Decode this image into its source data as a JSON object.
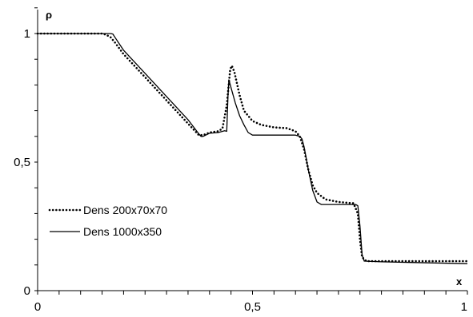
{
  "chart_data": {
    "type": "line",
    "xlabel": "x",
    "ylabel": "ρ",
    "xlim": [
      0,
      1
    ],
    "ylim": [
      0,
      1.1
    ],
    "x_ticks": [
      {
        "value": 0,
        "label": "0"
      },
      {
        "value": 0.5,
        "label": "0,5"
      },
      {
        "value": 1,
        "label": "1"
      }
    ],
    "y_ticks": [
      {
        "value": 0,
        "label": "0"
      },
      {
        "value": 0.5,
        "label": "0,5"
      },
      {
        "value": 1,
        "label": "1"
      }
    ],
    "x_minor_step": 0.05,
    "y_minor_step": 0.1,
    "grid": false,
    "legend_position": "left, lower middle",
    "series": [
      {
        "name": "Dens 200x70x70",
        "style": "dotted",
        "color": "#000000",
        "points": [
          [
            0,
            1.0
          ],
          [
            0.15,
            1.0
          ],
          [
            0.16,
            0.995
          ],
          [
            0.17,
            0.985
          ],
          [
            0.18,
            0.965
          ],
          [
            0.2,
            0.92
          ],
          [
            0.25,
            0.83
          ],
          [
            0.3,
            0.74
          ],
          [
            0.35,
            0.65
          ],
          [
            0.375,
            0.605
          ],
          [
            0.385,
            0.605
          ],
          [
            0.4,
            0.615
          ],
          [
            0.42,
            0.62
          ],
          [
            0.43,
            0.63
          ],
          [
            0.44,
            0.72
          ],
          [
            0.448,
            0.86
          ],
          [
            0.452,
            0.875
          ],
          [
            0.458,
            0.85
          ],
          [
            0.47,
            0.76
          ],
          [
            0.48,
            0.7
          ],
          [
            0.5,
            0.66
          ],
          [
            0.52,
            0.645
          ],
          [
            0.55,
            0.635
          ],
          [
            0.58,
            0.632
          ],
          [
            0.6,
            0.62
          ],
          [
            0.61,
            0.6
          ],
          [
            0.62,
            0.55
          ],
          [
            0.63,
            0.47
          ],
          [
            0.64,
            0.41
          ],
          [
            0.65,
            0.38
          ],
          [
            0.67,
            0.355
          ],
          [
            0.7,
            0.345
          ],
          [
            0.72,
            0.342
          ],
          [
            0.735,
            0.34
          ],
          [
            0.745,
            0.3
          ],
          [
            0.75,
            0.2
          ],
          [
            0.755,
            0.13
          ],
          [
            0.765,
            0.115
          ],
          [
            0.8,
            0.115
          ],
          [
            1.0,
            0.115
          ]
        ]
      },
      {
        "name": "Dens 1000x350",
        "style": "solid",
        "color": "#000000",
        "points": [
          [
            0,
            1.0
          ],
          [
            0.17,
            1.0
          ],
          [
            0.175,
            0.998
          ],
          [
            0.18,
            0.985
          ],
          [
            0.19,
            0.96
          ],
          [
            0.2,
            0.935
          ],
          [
            0.25,
            0.845
          ],
          [
            0.3,
            0.755
          ],
          [
            0.35,
            0.665
          ],
          [
            0.375,
            0.61
          ],
          [
            0.38,
            0.6
          ],
          [
            0.385,
            0.6
          ],
          [
            0.4,
            0.612
          ],
          [
            0.42,
            0.615
          ],
          [
            0.435,
            0.622
          ],
          [
            0.44,
            0.62
          ],
          [
            0.443,
            0.76
          ],
          [
            0.445,
            0.82
          ],
          [
            0.45,
            0.79
          ],
          [
            0.46,
            0.73
          ],
          [
            0.47,
            0.68
          ],
          [
            0.48,
            0.645
          ],
          [
            0.49,
            0.615
          ],
          [
            0.5,
            0.605
          ],
          [
            0.55,
            0.605
          ],
          [
            0.6,
            0.605
          ],
          [
            0.61,
            0.6
          ],
          [
            0.615,
            0.59
          ],
          [
            0.62,
            0.56
          ],
          [
            0.63,
            0.47
          ],
          [
            0.64,
            0.39
          ],
          [
            0.65,
            0.345
          ],
          [
            0.66,
            0.335
          ],
          [
            0.7,
            0.335
          ],
          [
            0.74,
            0.335
          ],
          [
            0.745,
            0.33
          ],
          [
            0.75,
            0.25
          ],
          [
            0.755,
            0.14
          ],
          [
            0.76,
            0.115
          ],
          [
            0.8,
            0.112
          ],
          [
            1.0,
            0.105
          ]
        ]
      }
    ]
  }
}
